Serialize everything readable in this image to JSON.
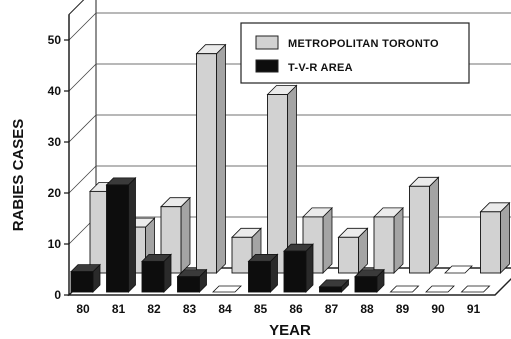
{
  "chart_data": {
    "type": "bar",
    "style": "3d",
    "categories": [
      "80",
      "81",
      "82",
      "83",
      "84",
      "85",
      "86",
      "87",
      "88",
      "89",
      "90",
      "91"
    ],
    "series": [
      {
        "name": "METROPOLITAN TORONTO",
        "color": "#d2d2d2",
        "values": [
          16,
          9,
          13,
          43,
          7,
          35,
          11,
          7,
          11,
          17,
          0,
          12
        ]
      },
      {
        "name": "T-V-R AREA",
        "color": "#0d0d0d",
        "values": [
          4,
          21,
          6,
          3,
          0,
          6,
          8,
          1,
          3,
          0,
          0,
          0
        ]
      }
    ],
    "xlabel": "YEAR",
    "ylabel": "RABIES CASES",
    "yticks": [
      0,
      10,
      20,
      30,
      40,
      50
    ],
    "ylim": [
      0,
      55
    ],
    "grid": true,
    "legend_position": "top-right"
  }
}
